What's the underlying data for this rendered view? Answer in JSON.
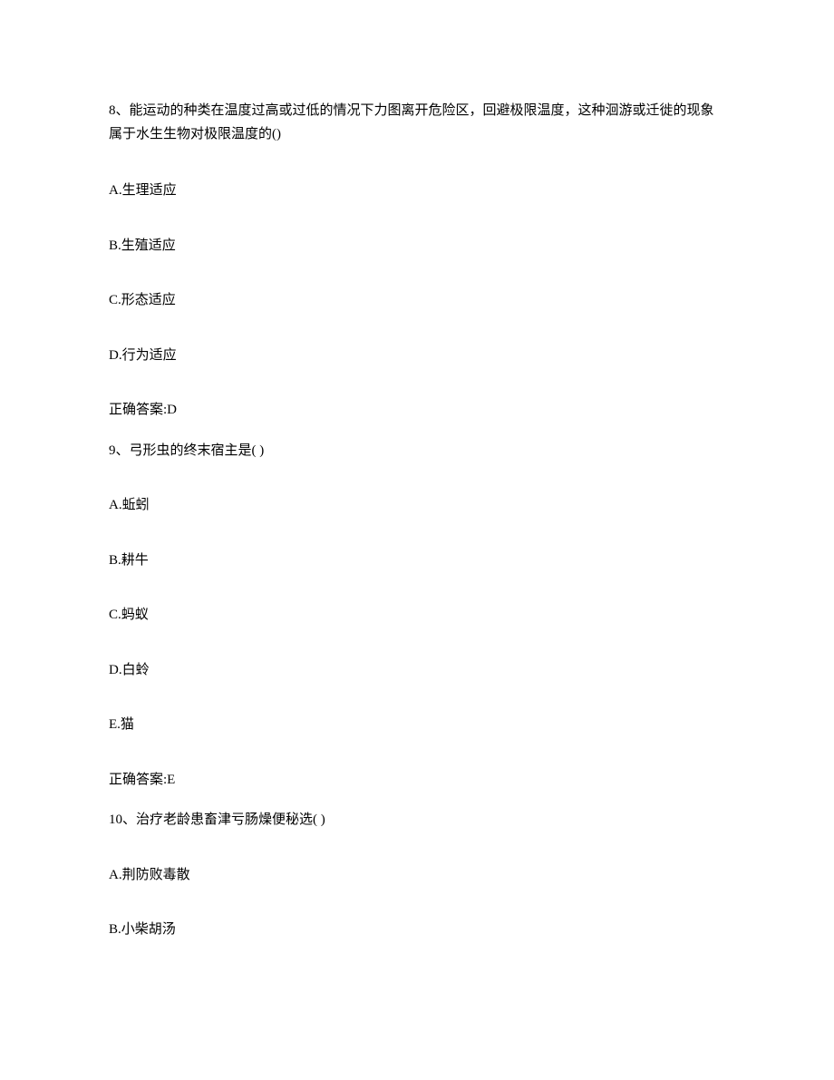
{
  "q8": {
    "stem": "8、能运动的种类在温度过高或过低的情况下力图离开危险区，回避极限温度，这种洄游或迁徙的现象属于水生生物对极限温度的()",
    "options": {
      "a": "A.生理适应",
      "b": "B.生殖适应",
      "c": "C.形态适应",
      "d": "D.行为适应"
    },
    "answer": "正确答案:D"
  },
  "q9": {
    "stem": "9、弓形虫的终末宿主是( )",
    "options": {
      "a": "A.蚯蚓",
      "b": "B.耕牛",
      "c": "C.蚂蚁",
      "d": "D.白蛉",
      "e": "E.猫"
    },
    "answer": "正确答案:E"
  },
  "q10": {
    "stem": "10、治疗老龄患畜津亏肠燥便秘选( )",
    "options": {
      "a": "A.荆防败毒散",
      "b": "B.小柴胡汤"
    }
  }
}
